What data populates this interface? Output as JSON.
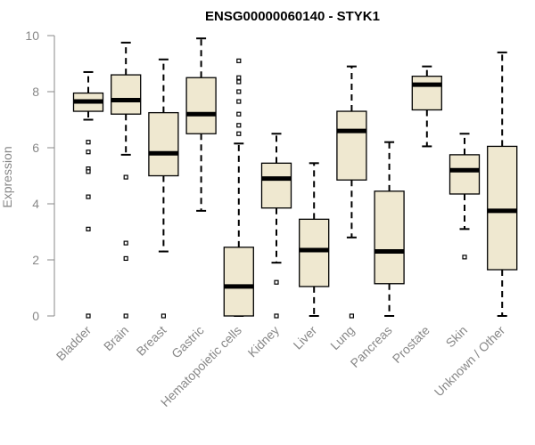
{
  "chart_data": {
    "type": "boxplot",
    "title": "ENSG00000060140 - STYK1",
    "xlabel": "",
    "ylabel": "Expression",
    "ylim": [
      0,
      10
    ],
    "yticks": [
      0,
      2,
      4,
      6,
      8,
      10
    ],
    "grid": false,
    "colors": {
      "box_fill": "#efe8d0",
      "stroke": "#000000",
      "axis_text": "#888888"
    },
    "categories": [
      "Bladder",
      "Brain",
      "Breast",
      "Gastric",
      "Hematopoietic cells",
      "Kidney",
      "Liver",
      "Lung",
      "Pancreas",
      "Prostate",
      "Skin",
      "Unknown / Other"
    ],
    "boxes": [
      {
        "category": "Bladder",
        "whisker_low": 7.0,
        "q1": 7.3,
        "median": 7.65,
        "q3": 7.95,
        "whisker_high": 8.7,
        "outliers": [
          6.2,
          5.85,
          5.25,
          5.15,
          4.25,
          3.1,
          0
        ]
      },
      {
        "category": "Brain",
        "whisker_low": 5.75,
        "q1": 7.2,
        "median": 7.7,
        "q3": 8.6,
        "whisker_high": 9.75,
        "outliers": [
          4.95,
          2.6,
          2.05,
          0
        ]
      },
      {
        "category": "Breast",
        "whisker_low": 2.3,
        "q1": 5.0,
        "median": 5.8,
        "q3": 7.25,
        "whisker_high": 9.15,
        "outliers": [
          0
        ]
      },
      {
        "category": "Gastric",
        "whisker_low": 3.75,
        "q1": 6.5,
        "median": 7.2,
        "q3": 8.5,
        "whisker_high": 9.9,
        "outliers": []
      },
      {
        "category": "Hematopoietic cells",
        "whisker_low": 0,
        "q1": 0,
        "median": 1.05,
        "q3": 2.45,
        "whisker_high": 6.15,
        "outliers": [
          9.1,
          8.5,
          8.35,
          8.0,
          7.65,
          7.2,
          6.8,
          6.5
        ]
      },
      {
        "category": "Kidney",
        "whisker_low": 1.9,
        "q1": 3.85,
        "median": 4.9,
        "q3": 5.45,
        "whisker_high": 6.5,
        "outliers": [
          1.2,
          0
        ]
      },
      {
        "category": "Liver",
        "whisker_low": 0,
        "q1": 1.05,
        "median": 2.35,
        "q3": 3.45,
        "whisker_high": 5.45,
        "outliers": []
      },
      {
        "category": "Lung",
        "whisker_low": 2.8,
        "q1": 4.85,
        "median": 6.6,
        "q3": 7.3,
        "whisker_high": 8.9,
        "outliers": [
          0
        ]
      },
      {
        "category": "Pancreas",
        "whisker_low": 0,
        "q1": 1.15,
        "median": 2.3,
        "q3": 4.45,
        "whisker_high": 6.2,
        "outliers": []
      },
      {
        "category": "Prostate",
        "whisker_low": 6.05,
        "q1": 7.35,
        "median": 8.25,
        "q3": 8.55,
        "whisker_high": 8.9,
        "outliers": []
      },
      {
        "category": "Skin",
        "whisker_low": 3.1,
        "q1": 4.35,
        "median": 5.2,
        "q3": 5.75,
        "whisker_high": 6.5,
        "outliers": [
          2.1
        ]
      },
      {
        "category": "Unknown / Other",
        "whisker_low": 0,
        "q1": 1.65,
        "median": 3.75,
        "q3": 6.05,
        "whisker_high": 9.4,
        "outliers": []
      }
    ]
  }
}
